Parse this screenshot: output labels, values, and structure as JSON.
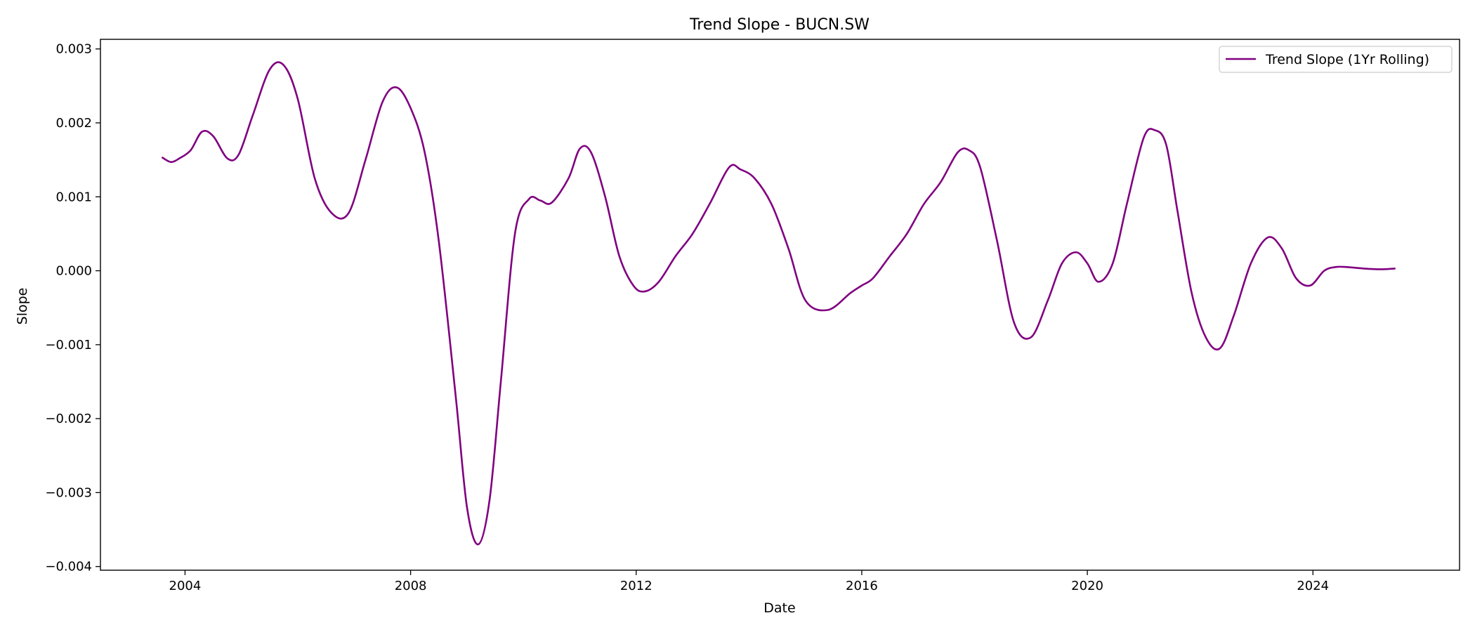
{
  "chart_data": {
    "type": "line",
    "title": "Trend Slope - BUCN.SW",
    "xlabel": "Date",
    "ylabel": "Slope",
    "xlim": [
      2002.5,
      2026.6
    ],
    "ylim": [
      -0.00405,
      0.00313
    ],
    "x_ticks": [
      2004,
      2008,
      2012,
      2016,
      2020,
      2024
    ],
    "x_tick_labels": [
      "2004",
      "2008",
      "2012",
      "2016",
      "2020",
      "2024"
    ],
    "y_ticks": [
      -0.004,
      -0.003,
      -0.002,
      -0.001,
      0.0,
      0.001,
      0.002,
      0.003
    ],
    "y_tick_labels": [
      "−0.004",
      "−0.003",
      "−0.002",
      "−0.001",
      "0.000",
      "0.001",
      "0.002",
      "0.003"
    ],
    "grid": false,
    "legend_position": "top-right",
    "colors": {
      "series": "#800080",
      "axes": "#000000",
      "background": "#ffffff"
    },
    "series": [
      {
        "name": "Trend Slope (1Yr Rolling)",
        "x": [
          2003.6,
          2003.75,
          2003.9,
          2004.1,
          2004.3,
          2004.5,
          2004.75,
          2004.95,
          2005.2,
          2005.5,
          2005.75,
          2006.0,
          2006.3,
          2006.6,
          2006.9,
          2007.2,
          2007.5,
          2007.75,
          2008.0,
          2008.25,
          2008.5,
          2008.8,
          2009.0,
          2009.2,
          2009.4,
          2009.6,
          2009.85,
          2010.1,
          2010.3,
          2010.5,
          2010.8,
          2011.0,
          2011.2,
          2011.45,
          2011.7,
          2011.95,
          2012.15,
          2012.4,
          2012.7,
          2013.0,
          2013.3,
          2013.65,
          2013.85,
          2014.1,
          2014.4,
          2014.7,
          2015.0,
          2015.4,
          2015.8,
          2016.0,
          2016.2,
          2016.5,
          2016.8,
          2017.1,
          2017.4,
          2017.7,
          2017.9,
          2018.1,
          2018.4,
          2018.7,
          2019.0,
          2019.3,
          2019.55,
          2019.8,
          2020.0,
          2020.2,
          2020.45,
          2020.7,
          2021.0,
          2021.2,
          2021.4,
          2021.6,
          2021.85,
          2022.1,
          2022.35,
          2022.6,
          2022.9,
          2023.2,
          2023.45,
          2023.7,
          2023.95,
          2024.2,
          2024.4,
          2024.6,
          2024.9,
          2025.2,
          2025.45
        ],
        "y": [
          0.00153,
          0.00147,
          0.00152,
          0.00163,
          0.00188,
          0.00182,
          0.00152,
          0.00157,
          0.0021,
          0.00272,
          0.00278,
          0.00232,
          0.00125,
          0.00078,
          0.00078,
          0.0015,
          0.00228,
          0.00248,
          0.0022,
          0.0016,
          0.0004,
          -0.0017,
          -0.0032,
          -0.0037,
          -0.0031,
          -0.0015,
          0.0005,
          0.00097,
          0.00095,
          0.00092,
          0.00125,
          0.00165,
          0.0016,
          0.001,
          0.0002,
          -0.0002,
          -0.00028,
          -0.00015,
          0.0002,
          0.0005,
          0.0009,
          0.0014,
          0.00137,
          0.00125,
          0.0009,
          0.0003,
          -0.0004,
          -0.00053,
          -0.0003,
          -0.0002,
          -0.0001,
          0.0002,
          0.0005,
          0.0009,
          0.0012,
          0.0016,
          0.00163,
          0.0014,
          0.0004,
          -0.0007,
          -0.0009,
          -0.0004,
          0.0001,
          0.00025,
          0.0001,
          -0.00015,
          0.0001,
          0.0009,
          0.0018,
          0.0019,
          0.0017,
          0.0008,
          -0.0003,
          -0.0009,
          -0.00105,
          -0.0006,
          0.0001,
          0.00045,
          0.0003,
          -0.0001,
          -0.0002,
          0.0,
          5e-05,
          5e-05,
          3e-05,
          2e-05,
          3e-05
        ]
      }
    ]
  }
}
